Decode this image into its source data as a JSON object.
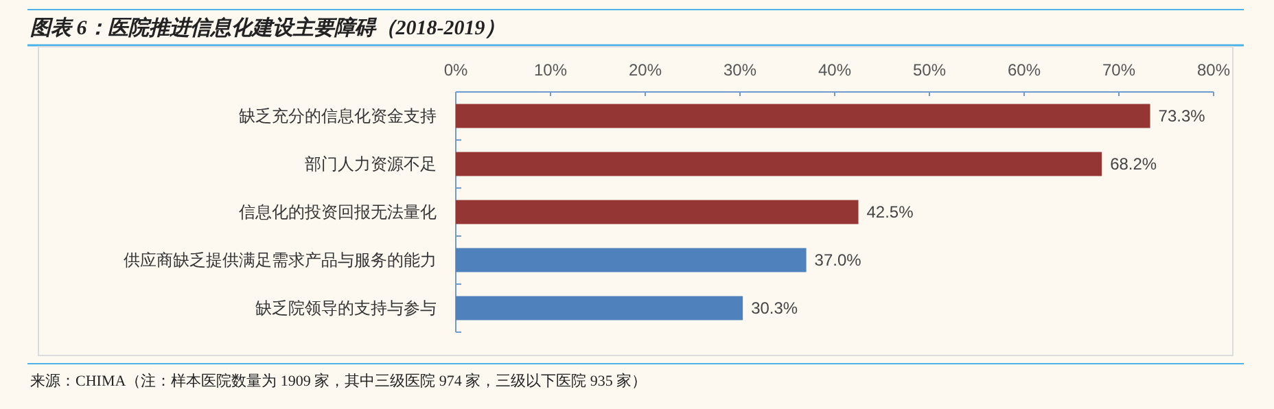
{
  "chart_data": {
    "type": "bar",
    "orientation": "horizontal",
    "title": "图表 6：医院推进信息化建设主要障碍（2018-2019）",
    "categories": [
      "缺乏充分的信息化资金支持",
      "部门人力资源不足",
      "信息化的投资回报无法量化",
      "供应商缺乏提供满足需求产品与服务的能力",
      "缺乏院领导的支持与参与"
    ],
    "values": [
      73.3,
      68.2,
      42.5,
      37.0,
      30.3
    ],
    "colors": [
      "#943634",
      "#943634",
      "#943634",
      "#4f81bd",
      "#4f81bd"
    ],
    "value_labels": [
      "73.3%",
      "68.2%",
      "42.5%",
      "37.0%",
      "30.3%"
    ],
    "xlim": [
      0,
      80
    ],
    "xticks": [
      {
        "value": 0,
        "label": "0%"
      },
      {
        "value": 10,
        "label": "10%"
      },
      {
        "value": 20,
        "label": "20%"
      },
      {
        "value": 30,
        "label": "30%"
      },
      {
        "value": 40,
        "label": "40%"
      },
      {
        "value": 50,
        "label": "50%"
      },
      {
        "value": 60,
        "label": "60%"
      },
      {
        "value": 70,
        "label": "70%"
      },
      {
        "value": 80,
        "label": "80%"
      }
    ],
    "annotations": [
      "来源：CHIMA（注：样本医院数量为 1909 家，其中三级医院 974 家，三级以下医院 935 家）"
    ]
  }
}
